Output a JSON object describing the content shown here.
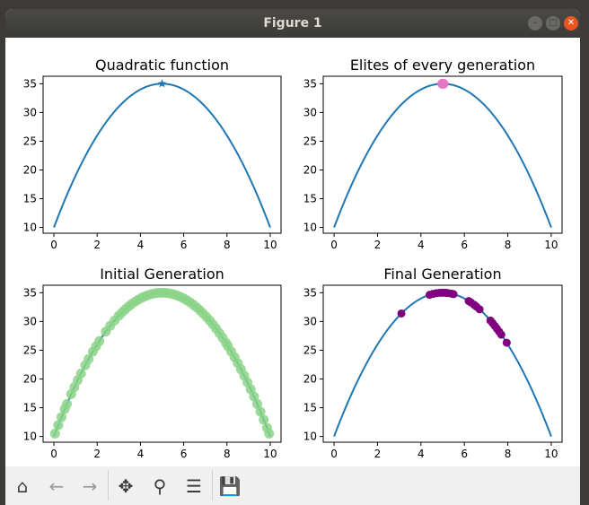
{
  "window": {
    "title": "Figure 1"
  },
  "toolbar": {
    "icons": [
      "home-icon",
      "back-icon",
      "forward-icon",
      "pan-icon",
      "zoom-icon",
      "configure-icon",
      "save-icon"
    ]
  },
  "colors": {
    "curve": "#1f77b4",
    "elite": "#e377c2",
    "initial": "#8bd487",
    "final": "#800080"
  },
  "chart_data": [
    {
      "type": "line",
      "title": "Quadratic function",
      "xlim": [
        -0.5,
        10.5
      ],
      "ylim": [
        9,
        36.3
      ],
      "xticks": [
        "0",
        "2",
        "4",
        "6",
        "8",
        "10"
      ],
      "yticks": [
        "10",
        "15",
        "20",
        "25",
        "30",
        "35"
      ],
      "curve": "y = 35 - (x - 5)^2",
      "markers": [
        {
          "x": 5,
          "y": 35,
          "symbol": "star"
        }
      ]
    },
    {
      "type": "line",
      "title": "Elites of every generation",
      "xlim": [
        -0.5,
        10.5
      ],
      "ylim": [
        9,
        36.3
      ],
      "xticks": [
        "0",
        "2",
        "4",
        "6",
        "8",
        "10"
      ],
      "yticks": [
        "10",
        "15",
        "20",
        "25",
        "30",
        "35"
      ],
      "curve": "y = 35 - (x - 5)^2",
      "points": [
        {
          "x": 5.0,
          "y": 35.0
        },
        {
          "x": 5.05,
          "y": 35.0
        },
        {
          "x": 4.98,
          "y": 35.0
        }
      ]
    },
    {
      "type": "scatter",
      "title": "Initial Generation",
      "xlim": [
        -0.5,
        10.5
      ],
      "ylim": [
        9,
        36.3
      ],
      "xticks": [
        "0",
        "2",
        "4",
        "6",
        "8",
        "10"
      ],
      "yticks": [
        "10",
        "15",
        "20",
        "25",
        "30",
        "35"
      ],
      "curve": "y = 35 - (x - 5)^2",
      "x": [
        0.05,
        0.2,
        0.35,
        0.5,
        0.6,
        0.8,
        0.95,
        1.1,
        1.25,
        1.45,
        1.6,
        1.8,
        1.95,
        2.1,
        2.4,
        2.6,
        2.8,
        3.0,
        3.15,
        3.3,
        3.45,
        3.6,
        3.75,
        3.9,
        4.05,
        4.2,
        4.35,
        4.5,
        4.65,
        4.8,
        4.95,
        5.1,
        5.25,
        5.4,
        5.55,
        5.7,
        5.85,
        6.0,
        6.15,
        6.3,
        6.45,
        6.6,
        6.75,
        6.9,
        7.05,
        7.2,
        7.35,
        7.5,
        7.65,
        7.8,
        7.95,
        8.05,
        8.2,
        8.35,
        8.5,
        8.65,
        8.8,
        8.95,
        9.1,
        9.25,
        9.4,
        9.55,
        9.7,
        9.85,
        9.95
      ]
    },
    {
      "type": "scatter",
      "title": "Final Generation",
      "xlim": [
        -0.5,
        10.5
      ],
      "ylim": [
        9,
        36.3
      ],
      "xticks": [
        "0",
        "2",
        "4",
        "6",
        "8",
        "10"
      ],
      "yticks": [
        "10",
        "15",
        "20",
        "25",
        "30",
        "35"
      ],
      "curve": "y = 35 - (x - 5)^2",
      "x": [
        3.1,
        4.4,
        4.55,
        4.7,
        4.85,
        4.95,
        5.05,
        5.15,
        5.25,
        5.4,
        5.5,
        6.2,
        6.3,
        6.45,
        6.55,
        6.7,
        7.2,
        7.3,
        7.4,
        7.5,
        7.6,
        7.7,
        7.95
      ]
    }
  ]
}
